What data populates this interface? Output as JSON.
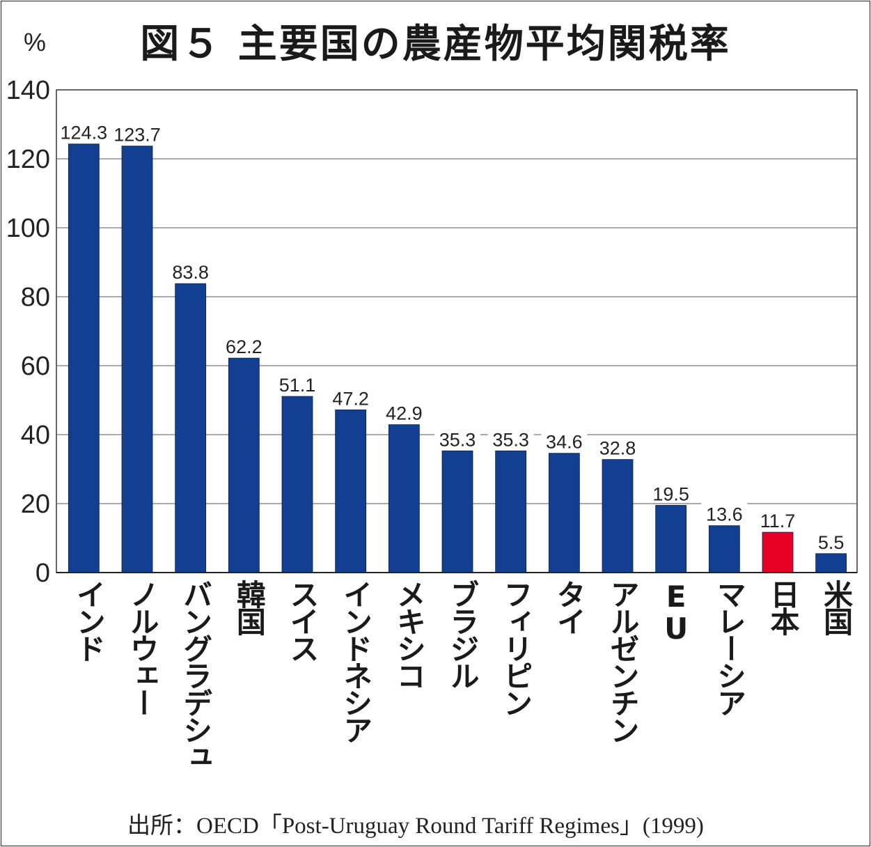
{
  "title": "図５ 主要国の農産物平均関税率",
  "unit_label": "%",
  "source": "出所：OECD「Post-Uruguay Round Tariff Regimes」(1999)",
  "chart_data": {
    "type": "bar",
    "title": "図５ 主要国の農産物平均関税率",
    "xlabel": "",
    "ylabel": "%",
    "ylim": [
      0,
      140
    ],
    "yticks": [
      0,
      20,
      40,
      60,
      80,
      100,
      120,
      140
    ],
    "grid": true,
    "categories": [
      "インド",
      "ノルウェー",
      "バングラデシュ",
      "韓国",
      "スイス",
      "インドネシア",
      "メキシコ",
      "ブラジル",
      "フィリピン",
      "タイ",
      "アルゼンチン",
      "EU",
      "マレーシア",
      "日本",
      "米国"
    ],
    "values": [
      124.3,
      123.7,
      83.8,
      62.2,
      51.1,
      47.2,
      42.9,
      35.3,
      35.3,
      34.6,
      32.8,
      19.5,
      13.6,
      11.7,
      5.5
    ],
    "value_labels": [
      "124.3",
      "123.7",
      "83.8",
      "62.2",
      "51.1",
      "47.2",
      "42.9",
      "35.3",
      "35.3",
      "34.6",
      "32.8",
      "19.5",
      "13.6",
      "11.7",
      "5.5"
    ],
    "colors": [
      "#123f92",
      "#123f92",
      "#123f92",
      "#123f92",
      "#123f92",
      "#123f92",
      "#123f92",
      "#123f92",
      "#123f92",
      "#123f92",
      "#123f92",
      "#123f92",
      "#123f92",
      "#e60026",
      "#123f92"
    ]
  }
}
